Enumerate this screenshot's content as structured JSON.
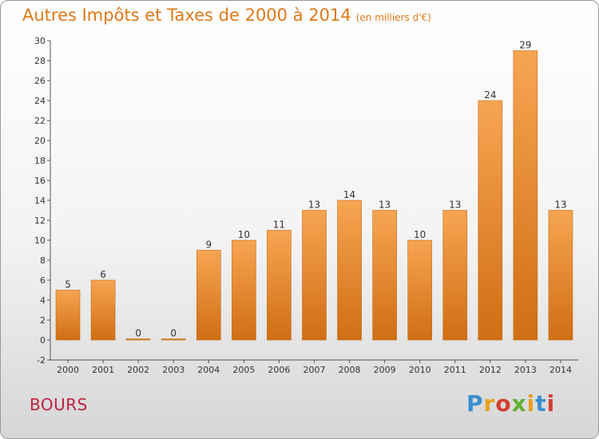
{
  "title": "Autres Impôts et Taxes de 2000 à 2014",
  "subtitle": "(en milliers d'€)",
  "commune": "BOURS",
  "logo": {
    "letters": [
      "P",
      "r",
      "o",
      "x",
      "i",
      "t",
      "i"
    ],
    "colors": [
      "#3a8fd0",
      "#e8a020",
      "#d04030",
      "#60b030",
      "#e8a020",
      "#3a8fd0",
      "#d04030"
    ]
  },
  "chart_data": {
    "type": "bar",
    "categories": [
      "2000",
      "2001",
      "2002",
      "2003",
      "2004",
      "2005",
      "2006",
      "2007",
      "2008",
      "2009",
      "2010",
      "2011",
      "2012",
      "2013",
      "2014"
    ],
    "values": [
      5,
      6,
      0,
      0,
      9,
      10,
      11,
      13,
      14,
      13,
      10,
      13,
      24,
      29,
      13
    ],
    "ylim": [
      -2,
      30
    ],
    "yticks": [
      -2,
      0,
      2,
      4,
      6,
      8,
      10,
      12,
      14,
      16,
      18,
      20,
      22,
      24,
      26,
      28,
      30
    ],
    "grid": false,
    "bar_color": "#e8882a"
  }
}
